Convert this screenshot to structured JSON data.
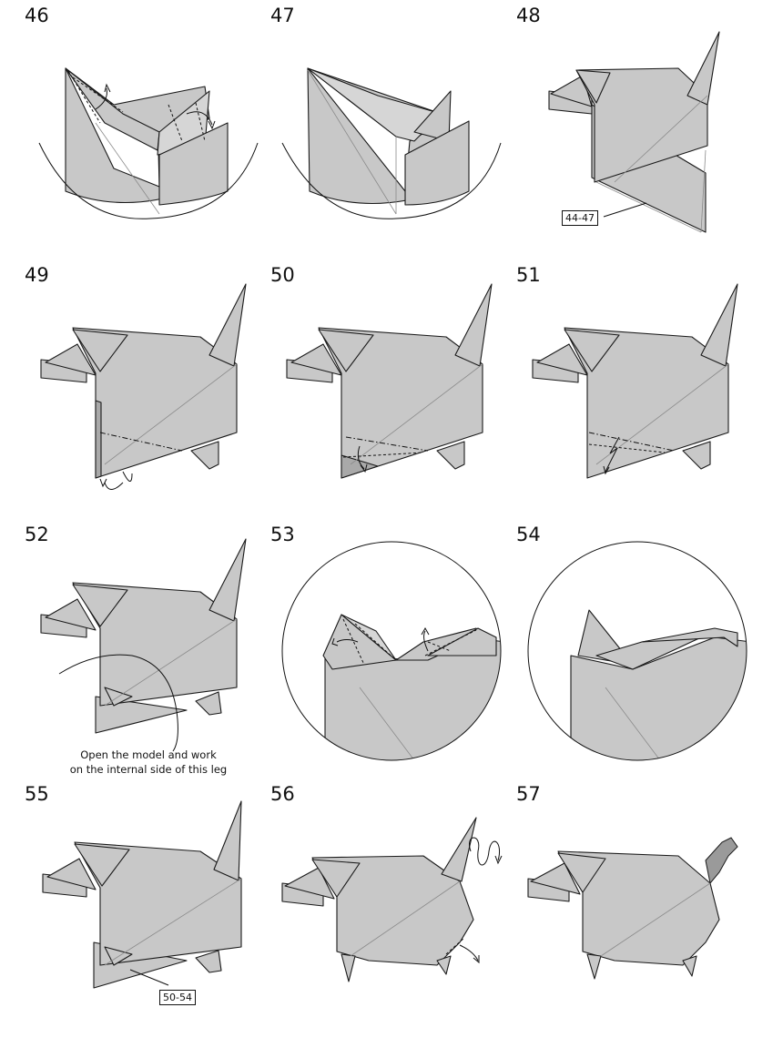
{
  "steps": [
    {
      "num": "46"
    },
    {
      "num": "47"
    },
    {
      "num": "48"
    },
    {
      "num": "49"
    },
    {
      "num": "50"
    },
    {
      "num": "51"
    },
    {
      "num": "52"
    },
    {
      "num": "53"
    },
    {
      "num": "54"
    },
    {
      "num": "55"
    },
    {
      "num": "56"
    },
    {
      "num": "57"
    }
  ],
  "refs": {
    "step48_ref": "44-47",
    "step55_ref": "50-54"
  },
  "notes": {
    "step52_line1": "Open the model and work",
    "step52_line2": "on the internal side of this leg"
  },
  "colors": {
    "paper": "#c8c8c8",
    "paper_dark": "#a9a9a9",
    "line": "#1a1a1a"
  }
}
